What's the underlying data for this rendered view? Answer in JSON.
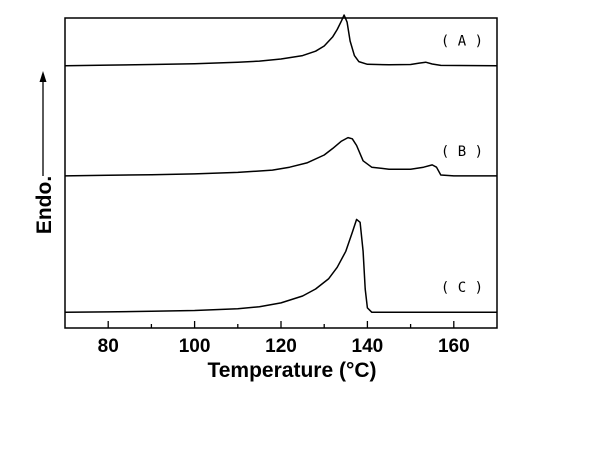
{
  "chart_data": {
    "type": "line",
    "title": "",
    "xlabel": "Temperature (°C)",
    "ylabel": "Endo.",
    "xlim": [
      70,
      170
    ],
    "xticks": [
      80,
      100,
      120,
      140,
      160
    ],
    "ylim": [
      0,
      10
    ],
    "yticks": [],
    "grid": false,
    "legend": "none",
    "series": [
      {
        "name": "( A )",
        "x": [
          70,
          80,
          90,
          100,
          110,
          115,
          120,
          125,
          128,
          130,
          132,
          133,
          134,
          134.6,
          135.3,
          136,
          137,
          138,
          140,
          145,
          150,
          152,
          153.5,
          155,
          157,
          170
        ],
        "y": [
          8.7,
          8.72,
          8.74,
          8.77,
          8.82,
          8.86,
          8.93,
          9.05,
          9.2,
          9.38,
          9.7,
          9.95,
          10.25,
          10.45,
          10.2,
          9.55,
          9.05,
          8.84,
          8.75,
          8.73,
          8.74,
          8.79,
          8.82,
          8.76,
          8.71,
          8.7
        ]
      },
      {
        "name": "( B )",
        "x": [
          70,
          80,
          90,
          100,
          110,
          118,
          122,
          126,
          130,
          132,
          134,
          135.5,
          136.5,
          137.5,
          139,
          141,
          145,
          150,
          153,
          155,
          156,
          157,
          160,
          170
        ],
        "y": [
          4.9,
          4.92,
          4.94,
          4.97,
          5.02,
          5.1,
          5.2,
          5.35,
          5.62,
          5.85,
          6.1,
          6.22,
          6.18,
          5.95,
          5.42,
          5.2,
          5.13,
          5.13,
          5.2,
          5.28,
          5.2,
          4.93,
          4.9,
          4.9
        ]
      },
      {
        "name": "( C )",
        "x": [
          70,
          80,
          90,
          100,
          110,
          115,
          120,
          125,
          128,
          131,
          133,
          135,
          136.5,
          137.5,
          138.3,
          139,
          139.5,
          140,
          141,
          145,
          170
        ],
        "y": [
          0.2,
          0.21,
          0.23,
          0.26,
          0.32,
          0.39,
          0.52,
          0.76,
          1.0,
          1.35,
          1.75,
          2.3,
          2.95,
          3.4,
          3.3,
          2.3,
          1.0,
          0.35,
          0.2,
          0.2,
          0.2
        ]
      }
    ]
  }
}
